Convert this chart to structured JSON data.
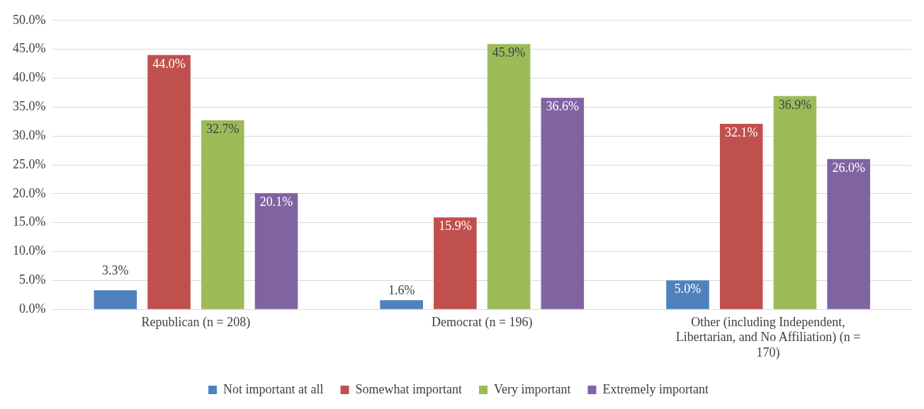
{
  "chart_data": {
    "type": "bar",
    "categories": [
      "Republican (n = 208)",
      "Democrat (n = 196)",
      "Other (including Independent, Libertarian, and No Affiliation) (n = 170)"
    ],
    "series": [
      {
        "name": "Not important at all",
        "color": "#4f81bd",
        "values": [
          3.3,
          1.6,
          5.0
        ],
        "value_labels": [
          "3.3%",
          "1.6%",
          "5.0%"
        ]
      },
      {
        "name": "Somewhat important",
        "color": "#c0504d",
        "values": [
          44.0,
          15.9,
          32.1
        ],
        "value_labels": [
          "44.0%",
          "15.9%",
          "32.1%"
        ]
      },
      {
        "name": "Very important",
        "color": "#9bbb59",
        "values": [
          32.7,
          45.9,
          36.9
        ],
        "value_labels": [
          "32.7%",
          "45.9%",
          "36.9%"
        ]
      },
      {
        "name": "Extremely important",
        "color": "#8064a2",
        "values": [
          20.1,
          36.6,
          26.0
        ],
        "value_labels": [
          "20.1%",
          "36.6%",
          "26.0%"
        ]
      }
    ],
    "ylim": [
      0,
      50
    ],
    "yticks": [
      {
        "value": 0,
        "label": "0.0%"
      },
      {
        "value": 5,
        "label": "5.0%"
      },
      {
        "value": 10,
        "label": "10.0%"
      },
      {
        "value": 15,
        "label": "15.0%"
      },
      {
        "value": 20,
        "label": "20.0%"
      },
      {
        "value": 25,
        "label": "25.0%"
      },
      {
        "value": 30,
        "label": "30.0%"
      },
      {
        "value": 35,
        "label": "35.0%"
      },
      {
        "value": 40,
        "label": "40.0%"
      },
      {
        "value": 45,
        "label": "45.0%"
      },
      {
        "value": 50,
        "label": "50.0%"
      }
    ],
    "grid": "y",
    "legend": "bottom"
  }
}
